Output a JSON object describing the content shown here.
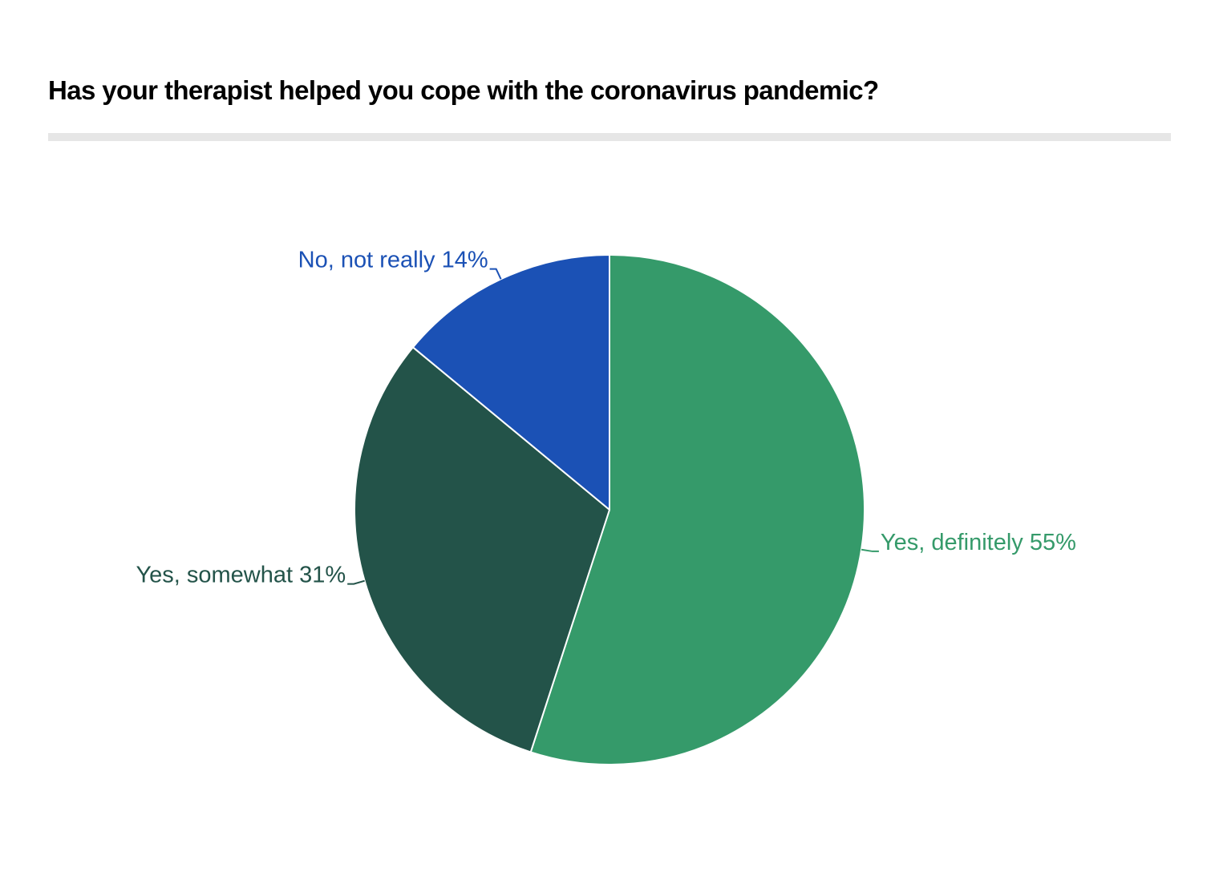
{
  "chart_data": {
    "type": "pie",
    "title": "Has your therapist helped you cope with the coronavirus pandemic?",
    "legend": "none",
    "slices": [
      {
        "label": "Yes, definitely",
        "value": 55,
        "value_label": "55%",
        "color": "#359a6a"
      },
      {
        "label": "Yes, somewhat",
        "value": 31,
        "value_label": "31%",
        "color": "#235349"
      },
      {
        "label": "No, not really",
        "value": 14,
        "value_label": "14%",
        "color": "#1b51b5"
      }
    ],
    "slice_order": "clockwise from 12 o'clock",
    "slice_border_color": "#ffffff",
    "title_rule_color": "#e6e6e6"
  }
}
